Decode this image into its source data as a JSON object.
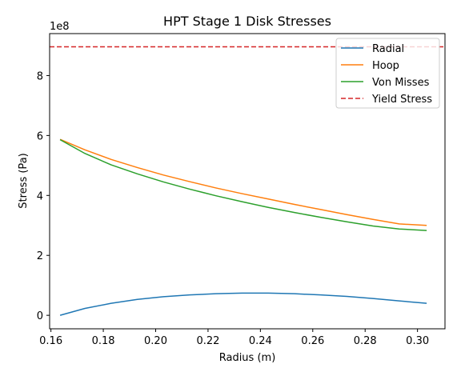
{
  "chart_data": {
    "type": "line",
    "title": "HPT Stage 1 Disk Stresses",
    "xlabel": "Radius (m)",
    "ylabel": "Stress (Pa)",
    "y_offset_label": "1e8",
    "y_scale": 100000000,
    "xlim": [
      0.1595,
      0.3105
    ],
    "ylim": [
      -0.45,
      9.4
    ],
    "x_ticks": [
      0.16,
      0.18,
      0.2,
      0.22,
      0.24,
      0.26,
      0.28,
      0.3
    ],
    "x_tick_labels": [
      "0.16",
      "0.18",
      "0.20",
      "0.22",
      "0.24",
      "0.26",
      "0.28",
      "0.30"
    ],
    "y_ticks": [
      0,
      2,
      4,
      6,
      8
    ],
    "y_tick_labels": [
      "0",
      "2",
      "4",
      "6",
      "8"
    ],
    "grid": false,
    "legend_position": "top-right",
    "x": [
      0.1635,
      0.173,
      0.183,
      0.193,
      0.203,
      0.213,
      0.223,
      0.233,
      0.243,
      0.253,
      0.263,
      0.273,
      0.283,
      0.293,
      0.3035
    ],
    "series": [
      {
        "name": "Radial",
        "color": "#1f77b4",
        "style": "solid",
        "values": [
          0.0,
          0.23,
          0.4,
          0.53,
          0.62,
          0.68,
          0.72,
          0.74,
          0.74,
          0.72,
          0.68,
          0.63,
          0.56,
          0.48,
          0.4
        ]
      },
      {
        "name": "Hoop",
        "color": "#ff7f0e",
        "style": "solid",
        "values": [
          5.87,
          5.52,
          5.2,
          4.93,
          4.68,
          4.46,
          4.25,
          4.06,
          3.88,
          3.7,
          3.53,
          3.36,
          3.2,
          3.05,
          3.0
        ]
      },
      {
        "name": "Von Misses",
        "color": "#2ca02c",
        "style": "solid",
        "values": [
          5.86,
          5.4,
          5.02,
          4.72,
          4.45,
          4.21,
          3.99,
          3.79,
          3.6,
          3.43,
          3.27,
          3.12,
          2.98,
          2.88,
          2.83
        ]
      },
      {
        "name": "Yield Stress",
        "color": "#d62728",
        "style": "dashed",
        "type": "hline",
        "value": 8.96
      }
    ]
  }
}
